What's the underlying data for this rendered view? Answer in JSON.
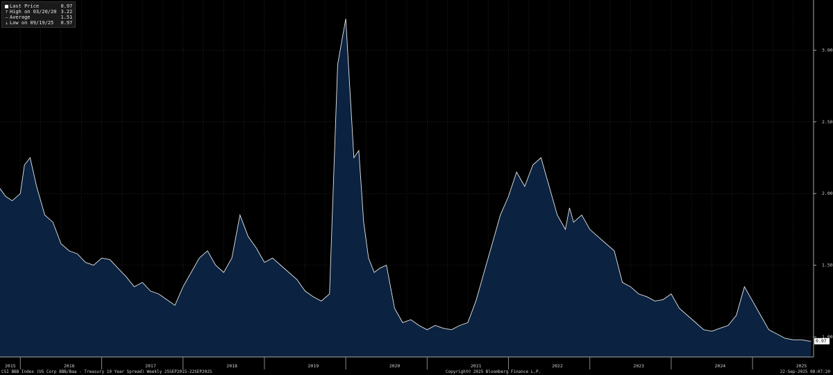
{
  "legend": {
    "items": [
      {
        "label": "Last Price",
        "value": "0.97",
        "marker": "box"
      },
      {
        "label": "High on 03/20/20",
        "value": "3.22",
        "marker": "high-tick"
      },
      {
        "label": "Average",
        "value": "1.51",
        "marker": "dash"
      },
      {
        "label": "Low on 09/19/25",
        "value": "0.97",
        "marker": "low-tick"
      }
    ]
  },
  "footer": {
    "left": "CSI BBB Index (US Corp BBB/Baa - Treasury 10 Year Spread)  Weekly 25SEP2015-22SEP2025",
    "center": "Copyright© 2025 Bloomberg Finance L.P.",
    "right": "22-Sep-2025 08:07:20"
  },
  "colors": {
    "background": "#000000",
    "area_fill": "#0b2240",
    "line": "#e8e8e8",
    "grid": "#3a3a3a",
    "last_price_tag": "#ffffff"
  },
  "chart_data": {
    "type": "area",
    "title": "",
    "xlabel": "",
    "ylabel": "",
    "ylim": [
      0.86,
      3.35
    ],
    "xlim": [
      2015.75,
      2025.75
    ],
    "y_ticks": [
      1.0,
      1.5,
      2.0,
      2.5,
      3.0
    ],
    "y_tick_labels": [
      "1.00",
      "1.50",
      "2.00",
      "2.50",
      "3.00"
    ],
    "x_ticks": [
      2015.75,
      2016.5,
      2017.5,
      2018.5,
      2019.5,
      2020.5,
      2021.5,
      2022.5,
      2023.5,
      2024.5,
      2025.5
    ],
    "x_tick_labels": [
      "2015",
      "2016",
      "2017",
      "2018",
      "2019",
      "2020",
      "2021",
      "2022",
      "2023",
      "2024",
      "2025"
    ],
    "grid": true,
    "legend_position": "top-left",
    "last_value_label": "0.97",
    "series": [
      {
        "name": "Last Price",
        "x": [
          2015.73,
          2015.82,
          2015.9,
          2016.0,
          2016.05,
          2016.12,
          2016.2,
          2016.3,
          2016.4,
          2016.5,
          2016.6,
          2016.7,
          2016.8,
          2016.9,
          2017.0,
          2017.1,
          2017.2,
          2017.3,
          2017.4,
          2017.5,
          2017.6,
          2017.7,
          2017.8,
          2017.9,
          2018.0,
          2018.1,
          2018.2,
          2018.3,
          2018.4,
          2018.5,
          2018.6,
          2018.7,
          2018.8,
          2018.9,
          2019.0,
          2019.1,
          2019.2,
          2019.3,
          2019.4,
          2019.5,
          2019.6,
          2019.7,
          2019.8,
          2019.9,
          2020.0,
          2020.1,
          2020.16,
          2020.22,
          2020.28,
          2020.35,
          2020.42,
          2020.5,
          2020.6,
          2020.7,
          2020.8,
          2020.9,
          2021.0,
          2021.1,
          2021.2,
          2021.3,
          2021.4,
          2021.5,
          2021.6,
          2021.7,
          2021.8,
          2021.9,
          2022.0,
          2022.1,
          2022.2,
          2022.3,
          2022.4,
          2022.5,
          2022.6,
          2022.7,
          2022.75,
          2022.8,
          2022.9,
          2023.0,
          2023.1,
          2023.2,
          2023.3,
          2023.4,
          2023.5,
          2023.6,
          2023.7,
          2023.8,
          2023.9,
          2024.0,
          2024.1,
          2024.2,
          2024.3,
          2024.4,
          2024.5,
          2024.6,
          2024.7,
          2024.8,
          2024.9,
          2025.0,
          2025.1,
          2025.2,
          2025.3,
          2025.4,
          2025.5,
          2025.6,
          2025.7,
          2025.72
        ],
        "values": [
          2.05,
          1.98,
          1.95,
          2.0,
          2.2,
          2.25,
          2.05,
          1.85,
          1.8,
          1.65,
          1.6,
          1.58,
          1.52,
          1.5,
          1.55,
          1.54,
          1.48,
          1.42,
          1.35,
          1.38,
          1.32,
          1.3,
          1.26,
          1.22,
          1.35,
          1.45,
          1.55,
          1.6,
          1.5,
          1.45,
          1.55,
          1.85,
          1.7,
          1.62,
          1.52,
          1.55,
          1.5,
          1.45,
          1.4,
          1.32,
          1.28,
          1.25,
          1.3,
          2.9,
          3.22,
          2.25,
          2.3,
          1.8,
          1.55,
          1.45,
          1.48,
          1.5,
          1.2,
          1.1,
          1.12,
          1.08,
          1.05,
          1.08,
          1.06,
          1.05,
          1.08,
          1.1,
          1.25,
          1.45,
          1.65,
          1.85,
          1.98,
          2.15,
          2.05,
          2.2,
          2.25,
          2.05,
          1.85,
          1.75,
          1.9,
          1.8,
          1.85,
          1.75,
          1.7,
          1.65,
          1.6,
          1.38,
          1.35,
          1.3,
          1.28,
          1.25,
          1.26,
          1.3,
          1.2,
          1.15,
          1.1,
          1.05,
          1.04,
          1.06,
          1.08,
          1.15,
          1.35,
          1.25,
          1.15,
          1.05,
          1.02,
          0.99,
          0.98,
          0.98,
          0.97,
          0.97
        ]
      }
    ]
  }
}
